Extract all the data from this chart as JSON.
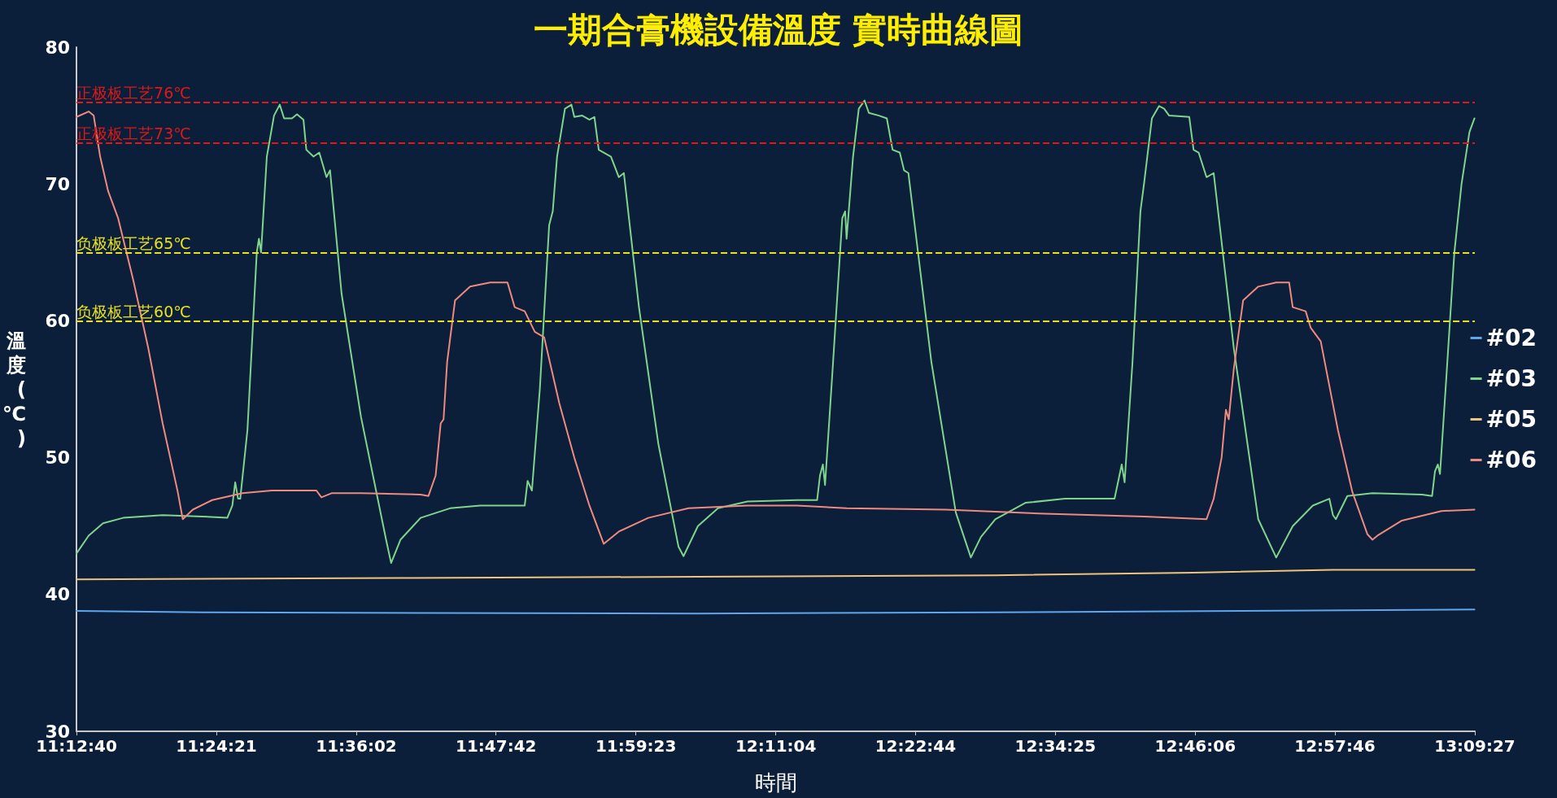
{
  "chart_data": {
    "type": "line",
    "title": "一期合膏機設備溫度 實時曲線圖",
    "xlabel": "時間",
    "ylabel": "溫度(℃)",
    "xlim": [
      11.2111,
      13.1575
    ],
    "xticks": [
      {
        "value": 11.21111,
        "label": "11:12:40"
      },
      {
        "value": 11.40583,
        "label": "11:24:21"
      },
      {
        "value": 11.60056,
        "label": "11:36:02"
      },
      {
        "value": 11.795,
        "label": "11:47:42"
      },
      {
        "value": 11.98972,
        "label": "11:59:23"
      },
      {
        "value": 12.18444,
        "label": "12:11:04"
      },
      {
        "value": 12.37889,
        "label": "12:22:44"
      },
      {
        "value": 12.57361,
        "label": "12:34:25"
      },
      {
        "value": 12.76833,
        "label": "12:46:06"
      },
      {
        "value": 12.96278,
        "label": "12:57:46"
      },
      {
        "value": 13.1575,
        "label": "13:09:27"
      }
    ],
    "ylim": [
      30,
      80
    ],
    "yticks": [
      30,
      40,
      50,
      60,
      70,
      80
    ],
    "grid": false,
    "legend": "right",
    "marker": "none",
    "line_style": "solid",
    "ref_lines": [
      {
        "axis": "y",
        "value": 76,
        "label": "正极板工艺76℃",
        "color": "#e01818",
        "line_style": "dashed"
      },
      {
        "axis": "y",
        "value": 73,
        "label": "正极板工艺73℃",
        "color": "#e01818",
        "line_style": "dashed"
      },
      {
        "axis": "y",
        "value": 65,
        "label": "负极板工艺65℃",
        "color": "#e8e020",
        "line_style": "dashed"
      },
      {
        "axis": "y",
        "value": 60,
        "label": "负极板工艺60℃",
        "color": "#e8e020",
        "line_style": "dashed"
      }
    ],
    "series": [
      {
        "name": "#02",
        "color": "#5ea6ee",
        "x": [
          11.2111,
          11.386,
          12.076,
          12.49,
          12.835,
          13.157
        ],
        "values": [
          38.8,
          38.7,
          38.6,
          38.7,
          38.8,
          38.9
        ]
      },
      {
        "name": "#03",
        "color": "#80d48c",
        "x": [
          11.2111,
          11.228,
          11.248,
          11.276,
          11.331,
          11.386,
          11.421,
          11.428,
          11.432,
          11.436,
          11.439,
          11.449,
          11.462,
          11.465,
          11.468,
          11.476,
          11.486,
          11.494,
          11.5,
          11.511,
          11.518,
          11.527,
          11.531,
          11.541,
          11.549,
          11.559,
          11.564,
          11.58,
          11.607,
          11.642,
          11.649,
          11.662,
          11.69,
          11.731,
          11.773,
          11.835,
          11.839,
          11.845,
          11.856,
          11.869,
          11.874,
          11.88,
          11.891,
          11.9,
          11.904,
          11.915,
          11.925,
          11.932,
          11.938,
          11.945,
          11.955,
          11.966,
          11.973,
          11.994,
          12.021,
          12.049,
          12.056,
          12.076,
          12.104,
          12.145,
          12.214,
          12.242,
          12.246,
          12.25,
          12.253,
          12.263,
          12.277,
          12.281,
          12.283,
          12.292,
          12.3,
          12.308,
          12.314,
          12.328,
          12.339,
          12.347,
          12.357,
          12.363,
          12.369,
          12.401,
          12.435,
          12.456,
          12.47,
          12.49,
          12.532,
          12.587,
          12.656,
          12.662,
          12.666,
          12.67,
          12.681,
          12.692,
          12.697,
          12.708,
          12.718,
          12.725,
          12.732,
          12.76,
          12.766,
          12.773,
          12.784,
          12.794,
          12.822,
          12.856,
          12.881,
          12.904,
          12.932,
          12.955,
          12.96,
          12.964,
          12.98,
          13.015,
          13.084,
          13.098,
          13.102,
          13.106,
          13.109,
          13.118,
          13.129,
          13.139,
          13.15,
          13.157
        ],
        "values": [
          43,
          44.3,
          45.2,
          45.6,
          45.8,
          45.7,
          45.6,
          46.5,
          48.2,
          47,
          47,
          52,
          65,
          66,
          65,
          72,
          75,
          75.8,
          74.8,
          74.8,
          75.1,
          74.7,
          72.5,
          72,
          72.3,
          70.5,
          71,
          62,
          53,
          44,
          42.3,
          44,
          45.6,
          46.3,
          46.5,
          46.5,
          48.3,
          47.6,
          55,
          67,
          68,
          72,
          75.5,
          75.8,
          74.9,
          75,
          74.7,
          74.9,
          72.5,
          72.3,
          72,
          70.5,
          70.8,
          61,
          51,
          43.5,
          42.8,
          45,
          46.3,
          46.8,
          46.9,
          46.9,
          48.7,
          49.5,
          48,
          56,
          67.5,
          68,
          66,
          72,
          75.5,
          76.1,
          75.2,
          75,
          74.8,
          72.5,
          72.3,
          71,
          70.8,
          57,
          46,
          42.7,
          44.2,
          45.5,
          46.7,
          47,
          47,
          48.5,
          49.5,
          48.2,
          57,
          68,
          70,
          74.8,
          75.7,
          75.5,
          75,
          74.9,
          72.5,
          72.3,
          70.5,
          70.8,
          58,
          45.5,
          42.7,
          45,
          46.5,
          47,
          45.8,
          45.5,
          47.2,
          47.4,
          47.3,
          47.2,
          49,
          49.5,
          48.8,
          56,
          65,
          70,
          73.8,
          74.8
        ]
      },
      {
        "name": "#05",
        "color": "#f0c27a",
        "x": [
          11.2111,
          11.662,
          12.076,
          12.49,
          12.766,
          12.96,
          13.157
        ],
        "values": [
          41.1,
          41.2,
          41.3,
          41.4,
          41.6,
          41.8,
          41.8
        ]
      },
      {
        "name": "#06",
        "color": "#f0897e",
        "x": [
          11.2111,
          11.228,
          11.235,
          11.244,
          11.255,
          11.269,
          11.29,
          11.311,
          11.331,
          11.352,
          11.359,
          11.373,
          11.4,
          11.442,
          11.483,
          11.545,
          11.552,
          11.566,
          11.607,
          11.69,
          11.701,
          11.711,
          11.718,
          11.722,
          11.727,
          11.738,
          11.759,
          11.787,
          11.811,
          11.821,
          11.835,
          11.849,
          11.862,
          11.883,
          11.904,
          11.925,
          11.945,
          11.966,
          12.007,
          12.063,
          12.145,
          12.214,
          12.283,
          12.421,
          12.559,
          12.697,
          12.784,
          12.794,
          12.805,
          12.811,
          12.815,
          12.822,
          12.835,
          12.856,
          12.881,
          12.899,
          12.904,
          12.922,
          12.929,
          12.943,
          12.967,
          12.987,
          13.008,
          13.015,
          13.022,
          13.056,
          13.111,
          13.157
        ],
        "values": [
          74.9,
          75.3,
          75,
          72,
          69.5,
          67.5,
          63,
          58,
          52.5,
          47.5,
          45.5,
          46.2,
          46.9,
          47.4,
          47.6,
          47.6,
          47.1,
          47.4,
          47.4,
          47.3,
          47.2,
          48.7,
          52.5,
          52.8,
          57,
          61.5,
          62.5,
          62.8,
          62.8,
          61,
          60.7,
          59.2,
          58.8,
          54,
          50,
          46.5,
          43.7,
          44.6,
          45.6,
          46.3,
          46.5,
          46.5,
          46.3,
          46.2,
          45.9,
          45.7,
          45.5,
          47,
          50,
          53.5,
          52.8,
          56.5,
          61.5,
          62.5,
          62.8,
          62.8,
          61,
          60.7,
          59.5,
          58.5,
          52,
          47.5,
          44.4,
          44,
          44.3,
          45.4,
          46.1,
          46.2
        ]
      }
    ]
  }
}
